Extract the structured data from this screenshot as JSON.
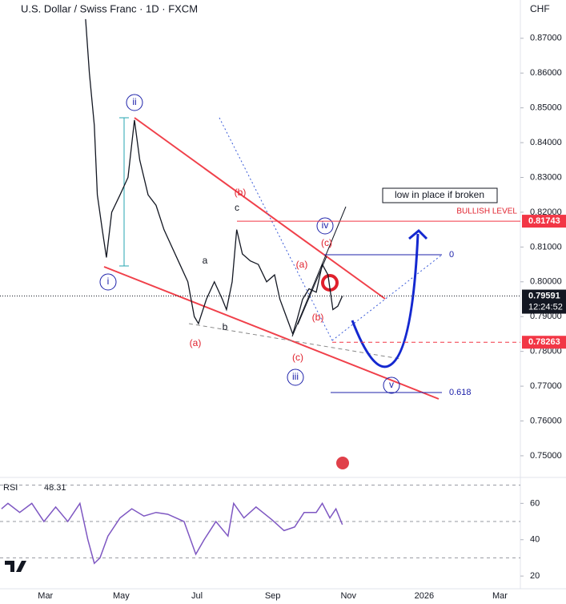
{
  "chart_data": [
    {
      "type": "line",
      "title": "U.S. Dollar / Swiss Franc · 1D · FXCM",
      "ylabel": "CHF",
      "color": "#131722",
      "x": [
        1.06,
        1.16,
        1.29,
        1.37,
        1.5,
        1.61,
        1.75,
        1.97,
        2.18,
        2.35,
        2.49,
        2.71,
        2.92,
        3.13,
        3.34,
        3.55,
        3.76,
        3.93,
        4.04,
        4.25,
        4.46,
        4.67,
        4.78,
        4.93,
        5.05,
        5.2,
        5.41,
        5.62,
        5.84,
        6.05,
        6.19,
        6.36,
        6.53,
        6.64,
        6.79,
        6.96,
        7.15,
        7.31,
        7.46,
        7.59,
        7.72,
        7.84
      ],
      "values": [
        0.8755,
        0.86,
        0.845,
        0.825,
        0.815,
        0.807,
        0.82,
        0.825,
        0.83,
        0.8465,
        0.835,
        0.825,
        0.822,
        0.815,
        0.81,
        0.805,
        0.8,
        0.79,
        0.788,
        0.795,
        0.8,
        0.795,
        0.792,
        0.8,
        0.815,
        0.808,
        0.806,
        0.805,
        0.8,
        0.802,
        0.795,
        0.79,
        0.785,
        0.789,
        0.795,
        0.798,
        0.797,
        0.805,
        0.802,
        0.792,
        0.793,
        0.79591
      ],
      "xlim": [
        -1.2,
        12.54
      ],
      "ylim": [
        0.744,
        0.881
      ],
      "xticks": [
        {
          "value": 0,
          "label": "Mar"
        },
        {
          "value": 2,
          "label": "May"
        },
        {
          "value": 4,
          "label": "Jul"
        },
        {
          "value": 6,
          "label": "Sep"
        },
        {
          "value": 8,
          "label": "Nov"
        },
        {
          "value": 10,
          "label": "2026"
        },
        {
          "value": 12,
          "label": "Mar"
        }
      ],
      "yticks": [
        {
          "value": 0.75,
          "label": "0.75000"
        },
        {
          "value": 0.76,
          "label": "0.76000"
        },
        {
          "value": 0.77,
          "label": "0.77000"
        },
        {
          "value": 0.78,
          "label": "0.78000"
        },
        {
          "value": 0.79,
          "label": "0.79000"
        },
        {
          "value": 0.8,
          "label": "0.80000"
        },
        {
          "value": 0.81,
          "label": "0.81000"
        },
        {
          "value": 0.82,
          "label": "0.82000"
        },
        {
          "value": 0.83,
          "label": "0.83000"
        },
        {
          "value": 0.84,
          "label": "0.84000"
        },
        {
          "value": 0.85,
          "label": "0.85000"
        },
        {
          "value": 0.86,
          "label": "0.86000"
        },
        {
          "value": 0.87,
          "label": "0.87000"
        }
      ],
      "levels": [
        {
          "value": 0.81743,
          "color": "#f23645"
        },
        {
          "value": 0.78263,
          "color": "#f23645"
        }
      ],
      "last": {
        "value": 0.79591,
        "countdown": "12:24:52"
      },
      "annotations": [
        "ii",
        "i",
        "iii",
        "iv",
        "v",
        "(b)",
        "c",
        "a",
        "b",
        "(a)",
        "(a)",
        "(c)",
        "(b)",
        "(c)",
        "low in place if broken",
        "BULLISH LEVEL",
        "0",
        "0.618"
      ]
    },
    {
      "type": "line",
      "title": "RSI",
      "last_value": 48.31,
      "color": "#7e57c2",
      "x": [
        -1.16,
        -0.99,
        -0.68,
        -0.36,
        -0.04,
        0.27,
        0.59,
        0.91,
        1.12,
        1.29,
        1.44,
        1.65,
        1.97,
        2.28,
        2.6,
        2.92,
        3.23,
        3.66,
        3.97,
        4.19,
        4.5,
        4.82,
        4.97,
        5.24,
        5.56,
        5.98,
        6.3,
        6.58,
        6.83,
        7.15,
        7.31,
        7.51,
        7.67,
        7.84
      ],
      "values": [
        57,
        60,
        55,
        60,
        50,
        58,
        50,
        60,
        40,
        27,
        30,
        42,
        52,
        57,
        53,
        55,
        54,
        50,
        32,
        40,
        50,
        42,
        60,
        52,
        58,
        51,
        45,
        47,
        55,
        55,
        60,
        52,
        57,
        48.31
      ],
      "xlim": [
        -1.2,
        12.54
      ],
      "ylim": [
        13,
        72.5
      ],
      "yticks": [
        20,
        40,
        60
      ],
      "bands": [
        30,
        50,
        70
      ]
    }
  ]
}
